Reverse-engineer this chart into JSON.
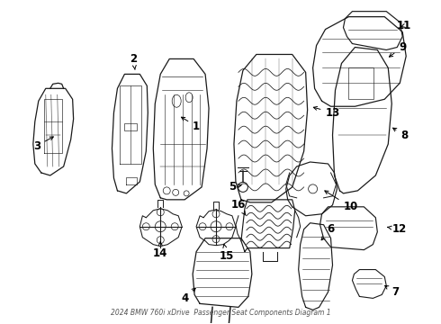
{
  "title": "2024 BMW 760i xDrive",
  "subtitle": "Passenger Seat Components Diagram 1",
  "background_color": "#ffffff",
  "line_color": "#1a1a1a",
  "fig_width": 4.9,
  "fig_height": 3.6,
  "dpi": 100
}
